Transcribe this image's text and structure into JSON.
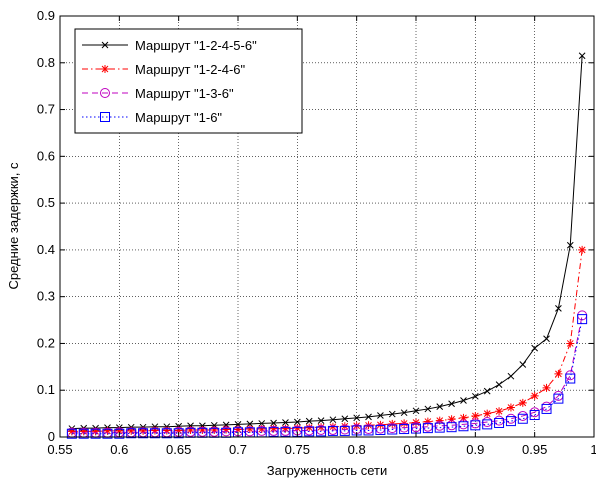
{
  "chart_data": {
    "type": "line",
    "xlabel": "Загруженность сети",
    "ylabel": "Средние задержки, с",
    "xlim": [
      0.55,
      1.0
    ],
    "ylim": [
      0,
      0.9
    ],
    "grid": true,
    "legend_position": "top-left",
    "x_ticks": [
      "0.55",
      "0.6",
      "0.65",
      "0.7",
      "0.75",
      "0.8",
      "0.85",
      "0.9",
      "0.95",
      "1"
    ],
    "y_ticks": [
      "0",
      "0.1",
      "0.2",
      "0.3",
      "0.4",
      "0.5",
      "0.6",
      "0.7",
      "0.8",
      "0.9"
    ],
    "x": [
      0.56,
      0.57,
      0.58,
      0.59,
      0.6,
      0.61,
      0.62,
      0.63,
      0.64,
      0.65,
      0.66,
      0.67,
      0.68,
      0.69,
      0.7,
      0.71,
      0.72,
      0.73,
      0.74,
      0.75,
      0.76,
      0.77,
      0.78,
      0.79,
      0.8,
      0.81,
      0.82,
      0.83,
      0.84,
      0.85,
      0.86,
      0.87,
      0.88,
      0.89,
      0.9,
      0.91,
      0.92,
      0.93,
      0.94,
      0.95,
      0.96,
      0.97,
      0.98,
      0.99
    ],
    "series": [
      {
        "name": "Маршрут \"1-2-4-5-6\"",
        "color": "#000000",
        "marker": "x",
        "dash": "solid",
        "values": [
          0.018,
          0.019,
          0.019,
          0.02,
          0.02,
          0.021,
          0.021,
          0.022,
          0.022,
          0.023,
          0.024,
          0.024,
          0.025,
          0.026,
          0.027,
          0.028,
          0.029,
          0.03,
          0.031,
          0.032,
          0.034,
          0.035,
          0.037,
          0.039,
          0.041,
          0.043,
          0.046,
          0.049,
          0.052,
          0.056,
          0.06,
          0.065,
          0.071,
          0.078,
          0.087,
          0.098,
          0.112,
          0.13,
          0.155,
          0.19,
          0.21,
          0.275,
          0.41,
          0.815
        ]
      },
      {
        "name": "Маршрут \"1-2-4-6\"",
        "color": "#ff0000",
        "marker": "star",
        "dash": "dashdot",
        "values": [
          0.012,
          0.012,
          0.012,
          0.013,
          0.013,
          0.013,
          0.013,
          0.014,
          0.014,
          0.014,
          0.015,
          0.015,
          0.015,
          0.016,
          0.016,
          0.017,
          0.017,
          0.018,
          0.018,
          0.019,
          0.02,
          0.021,
          0.022,
          0.023,
          0.024,
          0.025,
          0.026,
          0.028,
          0.029,
          0.031,
          0.033,
          0.035,
          0.038,
          0.041,
          0.045,
          0.05,
          0.055,
          0.063,
          0.073,
          0.088,
          0.105,
          0.135,
          0.2,
          0.4
        ]
      },
      {
        "name": "Маршрут \"1-3-6\"",
        "color": "#bf00bf",
        "marker": "circle",
        "dash": "dashed",
        "values": [
          0.009,
          0.009,
          0.009,
          0.009,
          0.01,
          0.01,
          0.01,
          0.01,
          0.01,
          0.011,
          0.011,
          0.011,
          0.011,
          0.012,
          0.012,
          0.012,
          0.013,
          0.013,
          0.013,
          0.014,
          0.014,
          0.015,
          0.015,
          0.016,
          0.017,
          0.017,
          0.018,
          0.019,
          0.02,
          0.021,
          0.022,
          0.024,
          0.025,
          0.027,
          0.029,
          0.032,
          0.035,
          0.039,
          0.045,
          0.053,
          0.065,
          0.088,
          0.132,
          0.26
        ]
      },
      {
        "name": "Маршрут \"1-6\"",
        "color": "#0000ff",
        "marker": "square",
        "dash": "dotted",
        "values": [
          0.007,
          0.007,
          0.007,
          0.007,
          0.007,
          0.008,
          0.008,
          0.008,
          0.008,
          0.008,
          0.009,
          0.009,
          0.009,
          0.009,
          0.01,
          0.01,
          0.01,
          0.011,
          0.011,
          0.011,
          0.012,
          0.012,
          0.013,
          0.013,
          0.014,
          0.014,
          0.015,
          0.016,
          0.017,
          0.018,
          0.019,
          0.02,
          0.021,
          0.023,
          0.025,
          0.027,
          0.03,
          0.034,
          0.039,
          0.047,
          0.06,
          0.082,
          0.125,
          0.252
        ]
      }
    ]
  }
}
